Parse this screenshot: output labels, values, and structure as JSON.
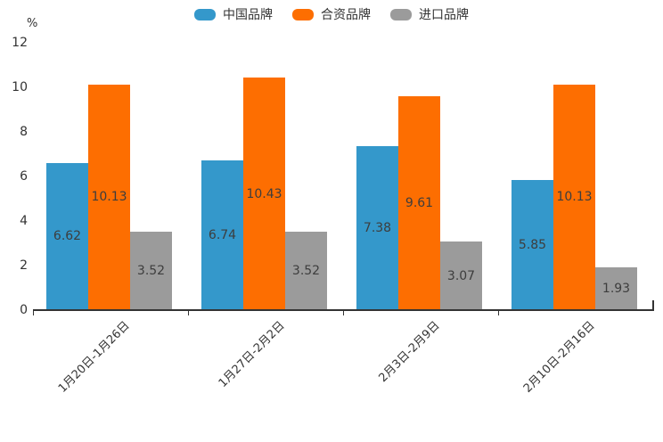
{
  "chart_data": {
    "type": "bar",
    "title": "",
    "ylabel": "%",
    "ylim": [
      0,
      12
    ],
    "yticks": [
      0,
      2,
      4,
      6,
      8,
      10,
      12
    ],
    "categories": [
      "1月20日-1月26日",
      "1月27日-2月2日",
      "2月3日-2月9日",
      "2月10日-2月16日"
    ],
    "series": [
      {
        "name": "中国品牌",
        "color": "#3498cb",
        "values": [
          6.62,
          6.74,
          7.38,
          5.85
        ]
      },
      {
        "name": "合资品牌",
        "color": "#fd6e01",
        "values": [
          10.13,
          10.43,
          9.61,
          10.13
        ]
      },
      {
        "name": "进口品牌",
        "color": "#9b9b9b",
        "values": [
          3.52,
          3.52,
          3.07,
          1.93
        ]
      }
    ],
    "legend_position": "top",
    "grid": false,
    "value_labels": "inside-center",
    "axis_color": "#333333"
  }
}
